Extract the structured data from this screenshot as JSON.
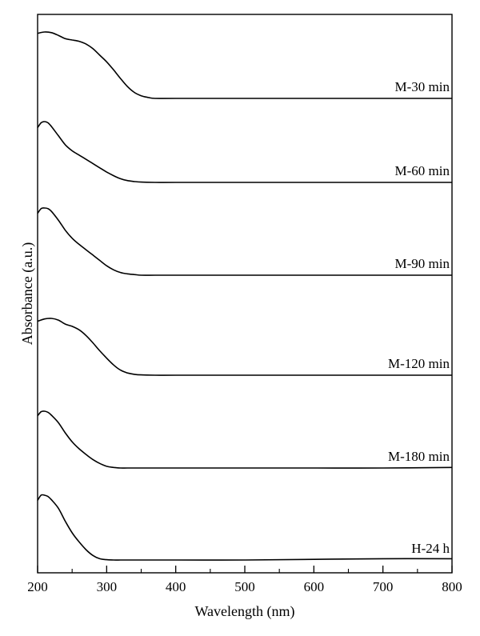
{
  "chart_data": {
    "type": "line",
    "xlabel": "Wavelength (nm)",
    "ylabel": "Absorbance (a.u.)",
    "title": "",
    "xlim": [
      200,
      800
    ],
    "major_ticks": [
      200,
      300,
      400,
      500,
      600,
      700,
      800
    ],
    "minor_ticks": [
      250,
      350,
      450,
      550,
      650,
      750
    ],
    "x_tick_labels": [
      "200",
      "300",
      "400",
      "500",
      "600",
      "700",
      "800"
    ],
    "y_tick_labels": [],
    "grid": false,
    "legend": "none",
    "series": [
      {
        "name": "M-30 min",
        "x": [
          200,
          210,
          220,
          230,
          240,
          250,
          260,
          270,
          280,
          290,
          300,
          310,
          320,
          330,
          340,
          350,
          360,
          370,
          400,
          500,
          600,
          700,
          800
        ],
        "y": [
          0.98,
          1.0,
          0.99,
          0.95,
          0.9,
          0.88,
          0.86,
          0.82,
          0.75,
          0.65,
          0.55,
          0.43,
          0.3,
          0.18,
          0.09,
          0.04,
          0.015,
          0.0,
          0.0,
          0.0,
          0.0,
          0.0,
          0.0
        ]
      },
      {
        "name": "M-60 min",
        "x": [
          200,
          205,
          210,
          215,
          220,
          230,
          240,
          250,
          260,
          270,
          280,
          290,
          300,
          310,
          320,
          330,
          340,
          350,
          370,
          400,
          500,
          600,
          700,
          800
        ],
        "y": [
          0.9,
          0.98,
          1.0,
          0.98,
          0.92,
          0.77,
          0.62,
          0.52,
          0.45,
          0.38,
          0.31,
          0.24,
          0.17,
          0.11,
          0.06,
          0.03,
          0.015,
          0.005,
          0.0,
          0.0,
          0.0,
          0.0,
          0.0,
          0.0
        ]
      },
      {
        "name": "M-90 min",
        "x": [
          200,
          205,
          210,
          215,
          220,
          230,
          240,
          250,
          260,
          270,
          280,
          290,
          300,
          310,
          320,
          330,
          340,
          350,
          370,
          400,
          500,
          600,
          700,
          800
        ],
        "y": [
          0.92,
          0.99,
          1.0,
          0.99,
          0.95,
          0.82,
          0.67,
          0.55,
          0.46,
          0.38,
          0.3,
          0.22,
          0.14,
          0.08,
          0.04,
          0.02,
          0.01,
          0.0,
          0.0,
          0.0,
          0.0,
          0.0,
          0.0,
          0.0
        ]
      },
      {
        "name": "M-120 min",
        "x": [
          200,
          210,
          220,
          230,
          240,
          250,
          260,
          270,
          280,
          290,
          300,
          310,
          320,
          330,
          340,
          350,
          370,
          400,
          500,
          600,
          700,
          800
        ],
        "y": [
          0.95,
          0.99,
          1.0,
          0.97,
          0.9,
          0.86,
          0.8,
          0.7,
          0.57,
          0.43,
          0.3,
          0.18,
          0.09,
          0.04,
          0.015,
          0.005,
          0.0,
          0.0,
          0.0,
          0.0,
          0.0,
          0.0
        ]
      },
      {
        "name": "M-180 min",
        "x": [
          200,
          205,
          210,
          215,
          220,
          230,
          240,
          250,
          260,
          270,
          280,
          290,
          300,
          310,
          320,
          330,
          350,
          400,
          500,
          600,
          700,
          800
        ],
        "y": [
          0.92,
          0.99,
          1.0,
          0.98,
          0.93,
          0.8,
          0.62,
          0.46,
          0.34,
          0.24,
          0.15,
          0.08,
          0.03,
          0.01,
          0.0,
          0.0,
          0.0,
          0.0,
          0.0,
          0.0,
          0.0,
          0.01
        ]
      },
      {
        "name": "H-24 h",
        "x": [
          200,
          205,
          210,
          215,
          220,
          230,
          240,
          250,
          260,
          270,
          280,
          290,
          300,
          310,
          320,
          330,
          350,
          400,
          500,
          600,
          700,
          800
        ],
        "y": [
          0.92,
          1.0,
          1.0,
          0.98,
          0.93,
          0.8,
          0.6,
          0.42,
          0.28,
          0.16,
          0.07,
          0.02,
          0.005,
          0.0,
          0.0,
          0.0,
          0.0,
          0.0,
          0.0,
          0.01,
          0.02,
          0.02
        ]
      }
    ]
  }
}
